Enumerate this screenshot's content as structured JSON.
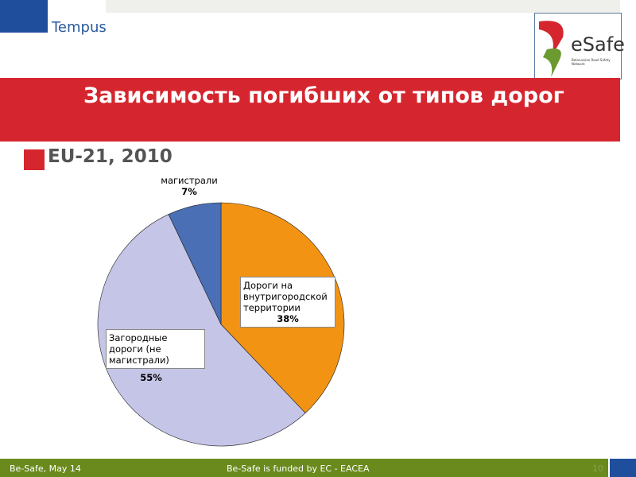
{
  "header": {
    "partner_logo_text": "Tempus",
    "brand_logo_text": "eSafe",
    "brand_logo_subtext": "Belarussian Road Safety Network"
  },
  "slide": {
    "title": "Зависимость погибших от типов дорог",
    "subtitle": "EU-21, 2010"
  },
  "chart_data": {
    "type": "pie",
    "categories": [
      "Дороги на внутригородской территории",
      "Загородные дороги (не магистрали)",
      "магистрали"
    ],
    "values": [
      38,
      55,
      7
    ],
    "labels": [
      "38%",
      "55%",
      "7%"
    ],
    "colors": [
      "#f39314",
      "#c5c5e8",
      "#4a6fb4"
    ],
    "start": "top",
    "direction": "clockwise"
  },
  "footer": {
    "left": "Be-Safe, May 14",
    "center": "Be-Safe is funded by EC - EACEA",
    "page": "10"
  }
}
